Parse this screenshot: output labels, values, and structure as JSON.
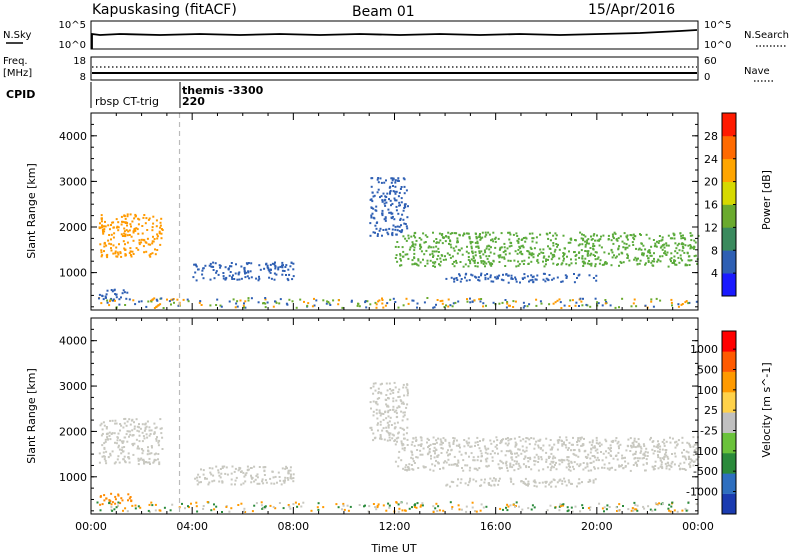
{
  "header": {
    "station": "Kapuskasing (fitACF)",
    "beam": "Beam 01",
    "date": "15/Apr/2016"
  },
  "noise_panel": {
    "left_label": "N.Sky",
    "right_label": "N.Search",
    "left_ticks": [
      "10^5",
      "10^0"
    ],
    "right_ticks": [
      "10^5",
      "10^0"
    ]
  },
  "freq_panel": {
    "label_line1": "Freq.",
    "label_line2": "[MHz]",
    "left_ticks": [
      "18",
      "8"
    ],
    "right_label": "Nave",
    "right_ticks": [
      "60",
      "0"
    ]
  },
  "cpid": {
    "label": "CPID",
    "segments": [
      {
        "text": "rbsp CT-trig",
        "start_hour": 0.0
      },
      {
        "text": "themis -3300",
        "start_hour": 3.5
      },
      {
        "text": "220",
        "start_hour": 3.5
      }
    ]
  },
  "chart_data": [
    {
      "type": "heatmap",
      "name": "power",
      "xlabel": "",
      "ylabel": "Slant Range [km]",
      "xlim": [
        0,
        24
      ],
      "ylim": [
        180,
        4500
      ],
      "yticks": [
        "1000",
        "2000",
        "3000",
        "4000"
      ],
      "colorbar": {
        "label": "Power [dB]",
        "ticks": [
          "4",
          "8",
          "12",
          "16",
          "20",
          "24",
          "28"
        ],
        "colors": [
          "#1a1aff",
          "#2e5fb3",
          "#3a8a5e",
          "#6aaa2e",
          "#d6d900",
          "#ffa500",
          "#ff6a00",
          "#ff1a00"
        ]
      },
      "dashed_marker_hour": 3.5,
      "echo_bands": [
        {
          "start_hour": 0.3,
          "end_hour": 2.8,
          "range_low": 1350,
          "range_high": 2300,
          "color": "#ff9a00"
        },
        {
          "start_hour": 0.3,
          "end_hour": 1.6,
          "range_low": 400,
          "range_high": 650,
          "color": "#2e5fb3"
        },
        {
          "start_hour": 4.0,
          "end_hour": 8.0,
          "range_low": 850,
          "range_high": 1250,
          "color": "#2e5fb3"
        },
        {
          "start_hour": 11.0,
          "end_hour": 12.5,
          "range_low": 1800,
          "range_high": 3100,
          "color": "#2e5fb3"
        },
        {
          "start_hour": 12.0,
          "end_hour": 24.0,
          "range_low": 1150,
          "range_high": 1900,
          "color": "#5aaa3a"
        },
        {
          "start_hour": 14.0,
          "end_hour": 20.0,
          "range_low": 800,
          "range_high": 1000,
          "color": "#2e5fb3"
        }
      ]
    },
    {
      "type": "heatmap",
      "name": "velocity",
      "xlabel": "Time UT",
      "ylabel": "Slant Range [km]",
      "xlim": [
        0,
        24
      ],
      "ylim": [
        180,
        4500
      ],
      "xticks": [
        "00:00",
        "04:00",
        "08:00",
        "12:00",
        "16:00",
        "20:00",
        "00:00"
      ],
      "yticks": [
        "1000",
        "2000",
        "3000",
        "4000"
      ],
      "colorbar": {
        "label": "Velocity [m s^-1]",
        "ticks": [
          "1000",
          "500",
          "100",
          "25",
          "-25",
          "-100",
          "-500",
          "-1000"
        ],
        "colors": [
          "#1a3bb0",
          "#2e6fbf",
          "#2a8a3a",
          "#6ac23a",
          "#c0c0c0",
          "#ffd24a",
          "#ff9a00",
          "#ff5a00",
          "#ff0000"
        ]
      },
      "dashed_marker_hour": 3.5,
      "echo_bands": [
        {
          "start_hour": 0.3,
          "end_hour": 2.8,
          "range_low": 1300,
          "range_high": 2300,
          "color": "#c8c8c0"
        },
        {
          "start_hour": 0.3,
          "end_hour": 1.6,
          "range_low": 380,
          "range_high": 650,
          "color": "#ff8a00"
        },
        {
          "start_hour": 4.0,
          "end_hour": 8.0,
          "range_low": 850,
          "range_high": 1250,
          "color": "#c8c8c0"
        },
        {
          "start_hour": 11.0,
          "end_hour": 12.5,
          "range_low": 1800,
          "range_high": 3100,
          "color": "#c8c8c0"
        },
        {
          "start_hour": 12.0,
          "end_hour": 24.0,
          "range_low": 1150,
          "range_high": 1900,
          "color": "#c8c8c0"
        },
        {
          "start_hour": 14.0,
          "end_hour": 20.0,
          "range_low": 800,
          "range_high": 1000,
          "color": "#c8c8c0"
        }
      ]
    }
  ]
}
